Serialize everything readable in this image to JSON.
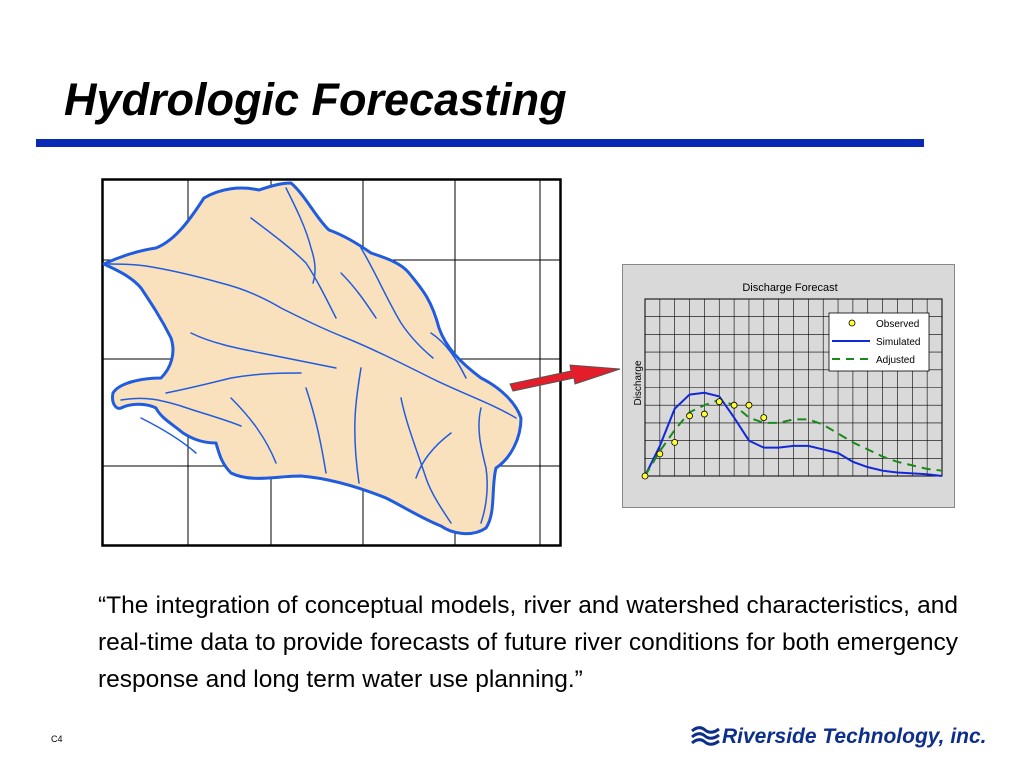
{
  "slide": {
    "title": "Hydrologic Forecasting",
    "quote": "“The integration of conceptual models, river and watershed characteristics, and real-time data to provide forecasts of future river conditions for both emergency response and long term water use planning.”",
    "slide_number": "C4",
    "company": "Riverside Technology, inc.",
    "colors": {
      "title_rule": "#0a2ab5",
      "watershed_fill": "#fae1bd",
      "watershed_outline": "#1f5ce0",
      "arrow": "#e41d2b",
      "logo": "#0d2f8c"
    }
  },
  "chart_data": {
    "type": "line",
    "title": "Discharge Forecast",
    "xlabel": "",
    "ylabel": "Discharge",
    "grid": true,
    "legend_placement": "top-right",
    "x": [
      0,
      1,
      2,
      3,
      4,
      5,
      6,
      7,
      8,
      9,
      10,
      11,
      12,
      13,
      14,
      15,
      16,
      17,
      18,
      19,
      20
    ],
    "ylim": [
      0,
      10
    ],
    "series": [
      {
        "name": "Observed",
        "style": "markers",
        "color": "#ffff33",
        "x": [
          0,
          1,
          2,
          3,
          4,
          5,
          6,
          7,
          8
        ],
        "values": [
          0,
          1.25,
          1.9,
          3.4,
          3.5,
          4.2,
          4.0,
          4.0,
          3.3
        ]
      },
      {
        "name": "Simulated",
        "style": "solid",
        "color": "#1428d8",
        "values": [
          0,
          1.7,
          3.8,
          4.6,
          4.7,
          4.5,
          3.3,
          2.0,
          1.6,
          1.6,
          1.7,
          1.7,
          1.5,
          1.3,
          0.8,
          0.5,
          0.3,
          0.2,
          0.15,
          0.1,
          0
        ]
      },
      {
        "name": "Adjusted",
        "style": "dashed",
        "color": "#1a8a1a",
        "values": [
          0,
          1.4,
          2.6,
          3.6,
          4.0,
          4.3,
          4.0,
          3.3,
          3.0,
          3.0,
          3.2,
          3.2,
          2.9,
          2.4,
          1.9,
          1.5,
          1.1,
          0.8,
          0.6,
          0.4,
          0.3
        ]
      }
    ]
  }
}
